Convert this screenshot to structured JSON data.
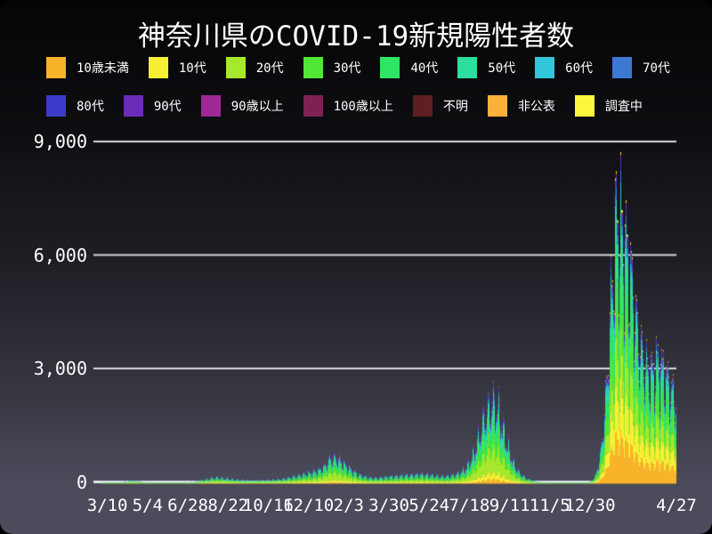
{
  "title": "神奈川県のCOVID-19新規陽性者数",
  "legend": {
    "row1": [
      {
        "label": "10歳未満",
        "color": "#f9b32b"
      },
      {
        "label": "10代",
        "color": "#f7ef34"
      },
      {
        "label": "20代",
        "color": "#a6e82c"
      },
      {
        "label": "30代",
        "color": "#52e636"
      },
      {
        "label": "40代",
        "color": "#2ee565"
      },
      {
        "label": "50代",
        "color": "#2cdf9e"
      },
      {
        "label": "60代",
        "color": "#31c6da"
      },
      {
        "label": "70代",
        "color": "#3b79d2"
      }
    ],
    "row2": [
      {
        "label": "80代",
        "color": "#3c3bc9"
      },
      {
        "label": "90代",
        "color": "#6c2cba"
      },
      {
        "label": "90歳以上",
        "color": "#9e2896"
      },
      {
        "label": "100歳以上",
        "color": "#7f2253"
      },
      {
        "label": "不明",
        "color": "#5d1f1f"
      },
      {
        "label": "非公表",
        "color": "#fbb03c"
      },
      {
        "label": "調査中",
        "color": "#faf73c"
      }
    ]
  },
  "chart_data": {
    "type": "bar",
    "stacked": true,
    "title": "神奈川県のCOVID-19新規陽性者数",
    "xlabel": "",
    "ylabel": "",
    "grid": true,
    "legend_position": "top",
    "ylim": [
      0,
      9400
    ],
    "max_daily_value": 9100,
    "y_ticks": [
      {
        "label": "0",
        "value": 0
      },
      {
        "label": "3,000",
        "value": 3000
      },
      {
        "label": "6,000",
        "value": 6000
      },
      {
        "label": "9,000",
        "value": 9000
      }
    ],
    "x_range": [
      "2020-02-20",
      "2022-04-27"
    ],
    "x_ticks": [
      {
        "label": "3/10",
        "date": "2020-03-10"
      },
      {
        "label": "5/4",
        "date": "2020-05-04"
      },
      {
        "label": "6/28",
        "date": "2020-06-28"
      },
      {
        "label": "8/22",
        "date": "2020-08-22"
      },
      {
        "label": "10/16",
        "date": "2020-10-16"
      },
      {
        "label": "12/10",
        "date": "2020-12-10"
      },
      {
        "label": "2/3",
        "date": "2021-02-03"
      },
      {
        "label": "3/30",
        "date": "2021-03-30"
      },
      {
        "label": "5/24",
        "date": "2021-05-24"
      },
      {
        "label": "7/18",
        "date": "2021-07-18"
      },
      {
        "label": "9/11",
        "date": "2021-09-11"
      },
      {
        "label": "11/5",
        "date": "2021-11-05"
      },
      {
        "label": "12/30",
        "date": "2021-12-30"
      },
      {
        "label": "4/27",
        "date": "2022-04-27"
      }
    ],
    "series_names": [
      "10歳未満",
      "10代",
      "20代",
      "30代",
      "40代",
      "50代",
      "60代",
      "70代",
      "80代",
      "90代",
      "90歳以上",
      "100歳以上",
      "不明",
      "非公表",
      "調査中"
    ],
    "weekly_totals": {
      "dates": [
        "2020-02-21",
        "2020-02-28",
        "2020-03-06",
        "2020-03-13",
        "2020-03-20",
        "2020-03-27",
        "2020-04-03",
        "2020-04-10",
        "2020-04-17",
        "2020-04-24",
        "2020-05-01",
        "2020-05-08",
        "2020-05-15",
        "2020-05-22",
        "2020-05-29",
        "2020-06-05",
        "2020-06-12",
        "2020-06-19",
        "2020-06-26",
        "2020-07-03",
        "2020-07-10",
        "2020-07-17",
        "2020-07-24",
        "2020-07-31",
        "2020-08-07",
        "2020-08-14",
        "2020-08-21",
        "2020-08-28",
        "2020-09-04",
        "2020-09-11",
        "2020-09-18",
        "2020-09-25",
        "2020-10-02",
        "2020-10-09",
        "2020-10-16",
        "2020-10-23",
        "2020-10-30",
        "2020-11-06",
        "2020-11-13",
        "2020-11-20",
        "2020-11-27",
        "2020-12-04",
        "2020-12-11",
        "2020-12-18",
        "2020-12-25",
        "2021-01-01",
        "2021-01-08",
        "2021-01-15",
        "2021-01-22",
        "2021-01-29",
        "2021-02-05",
        "2021-02-12",
        "2021-02-19",
        "2021-02-26",
        "2021-03-05",
        "2021-03-12",
        "2021-03-19",
        "2021-03-26",
        "2021-04-02",
        "2021-04-09",
        "2021-04-16",
        "2021-04-23",
        "2021-04-30",
        "2021-05-07",
        "2021-05-14",
        "2021-05-21",
        "2021-05-28",
        "2021-06-04",
        "2021-06-11",
        "2021-06-18",
        "2021-06-25",
        "2021-07-02",
        "2021-07-09",
        "2021-07-16",
        "2021-07-23",
        "2021-07-30",
        "2021-08-06",
        "2021-08-13",
        "2021-08-20",
        "2021-08-27",
        "2021-09-03",
        "2021-09-10",
        "2021-09-17",
        "2021-09-24",
        "2021-10-01",
        "2021-10-08",
        "2021-10-15",
        "2021-10-22",
        "2021-10-29",
        "2021-11-05",
        "2021-11-12",
        "2021-11-19",
        "2021-11-26",
        "2021-12-03",
        "2021-12-10",
        "2021-12-17",
        "2021-12-24",
        "2021-12-31",
        "2022-01-07",
        "2022-01-14",
        "2022-01-21",
        "2022-01-28",
        "2022-02-04",
        "2022-02-11",
        "2022-02-18",
        "2022-02-25",
        "2022-03-04",
        "2022-03-11",
        "2022-03-18",
        "2022-03-25",
        "2022-04-01",
        "2022-04-08",
        "2022-04-15",
        "2022-04-22",
        "2022-04-27"
      ],
      "values": [
        2,
        4,
        6,
        10,
        15,
        30,
        50,
        70,
        80,
        55,
        35,
        18,
        10,
        8,
        10,
        12,
        15,
        20,
        28,
        40,
        60,
        90,
        120,
        150,
        170,
        155,
        140,
        120,
        105,
        95,
        85,
        80,
        85,
        90,
        95,
        105,
        115,
        135,
        160,
        195,
        225,
        255,
        285,
        320,
        370,
        460,
        640,
        680,
        610,
        500,
        390,
        300,
        230,
        190,
        165,
        155,
        165,
        180,
        195,
        205,
        215,
        225,
        235,
        245,
        250,
        240,
        225,
        205,
        195,
        205,
        225,
        270,
        340,
        480,
        750,
        1150,
        1650,
        1950,
        2100,
        1900,
        1350,
        900,
        520,
        300,
        185,
        115,
        70,
        45,
        32,
        24,
        19,
        16,
        14,
        13,
        13,
        16,
        22,
        60,
        240,
        850,
        2300,
        4800,
        6900,
        6700,
        6100,
        5300,
        4100,
        3400,
        3000,
        2900,
        3200,
        3000,
        2700,
        2400,
        2200
      ]
    },
    "age_share_profiles": {
      "before_2022": {
        "10歳未満": 0.05,
        "10代": 0.08,
        "20代": 0.27,
        "30代": 0.17,
        "40代": 0.15,
        "50代": 0.12,
        "60代": 0.06,
        "70代": 0.045,
        "80代": 0.03,
        "90代": 0.015,
        "90歳以上": 0.004,
        "100歳以上": 0.0006,
        "不明": 0.0006,
        "非公表": 0.0018,
        "調査中": 0.003
      },
      "from_2022": {
        "10歳未満": 0.165,
        "10代": 0.15,
        "20代": 0.154,
        "30代": 0.15,
        "40代": 0.15,
        "50代": 0.09,
        "60代": 0.05,
        "70代": 0.035,
        "80代": 0.025,
        "90代": 0.013,
        "90歳以上": 0.006,
        "100歳以上": 0.001,
        "不明": 0.001,
        "非公表": 0.004,
        "調査中": 0.006
      }
    },
    "profile_transition": {
      "start": "2021-12-20",
      "days": 40
    }
  }
}
